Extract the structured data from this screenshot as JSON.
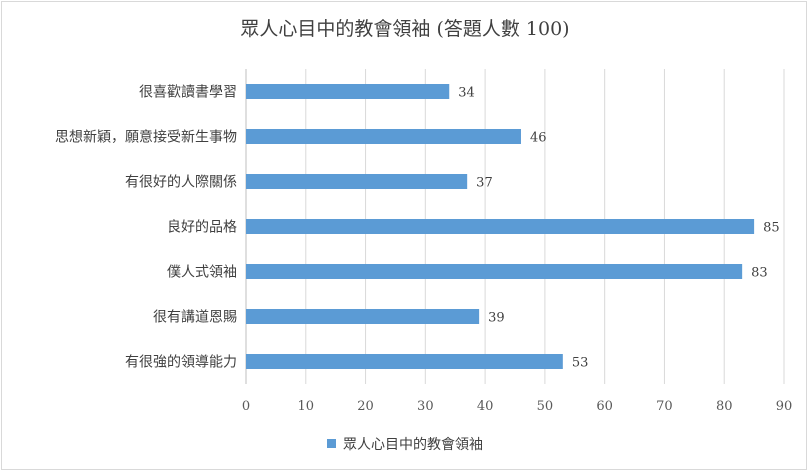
{
  "chart_data": {
    "type": "bar",
    "orientation": "horizontal",
    "title": "眾人心目中的教會領袖 (答題人數 100)",
    "categories": [
      "很喜歡讀書學習",
      "思想新穎，願意接受新生事物",
      "有很好的人際關係",
      "良好的品格",
      "僕人式領袖",
      "很有講道恩賜",
      "有很強的領導能力"
    ],
    "series": [
      {
        "name": "眾人心目中的教會領袖",
        "values": [
          34,
          46,
          37,
          85,
          83,
          39,
          53
        ]
      }
    ],
    "xlim": [
      0,
      90
    ],
    "xticks": [
      0,
      10,
      20,
      30,
      40,
      50,
      60,
      70,
      80,
      90
    ],
    "grid": true,
    "legend": "bottom",
    "color": "#5b9bd5"
  }
}
